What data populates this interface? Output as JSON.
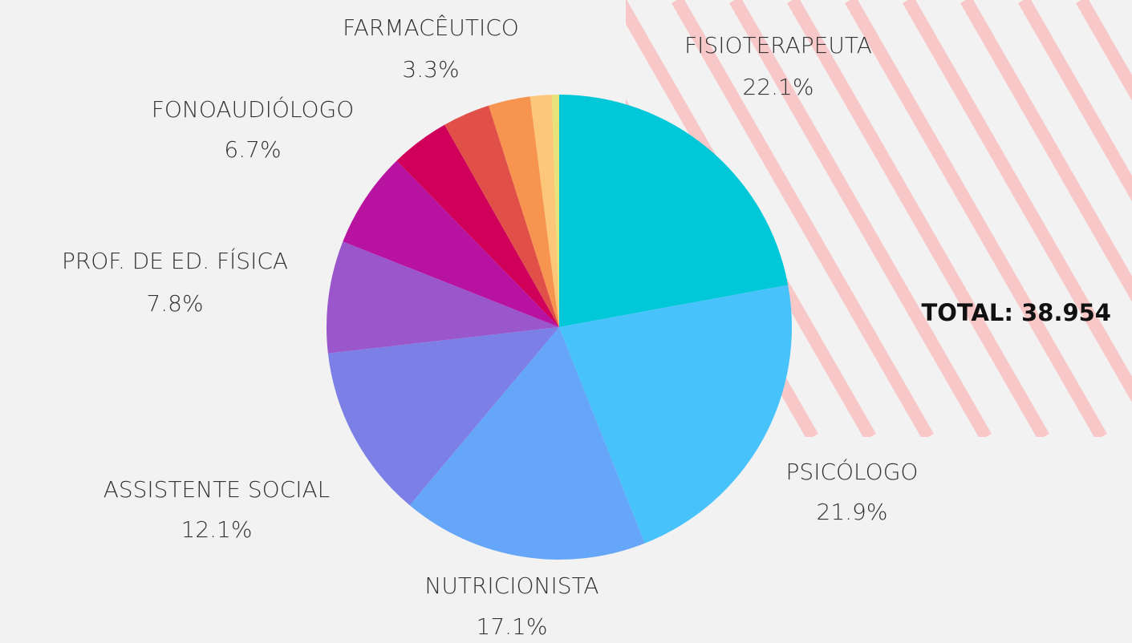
{
  "chart_data": {
    "type": "pie",
    "categories": [
      "FISIOTERAPEUTA",
      "PSICÓLOGO",
      "NUTRICIONISTA",
      "ASSISTENTE SOCIAL",
      "PROF. DE ED. FÍSICA",
      "FONOAUDIÓLOGO",
      null,
      "FARMACÊUTICO",
      null,
      null,
      null
    ],
    "values": [
      22.1,
      21.9,
      17.1,
      12.1,
      7.8,
      6.7,
      4.1,
      3.3,
      2.9,
      1.5,
      0.5
    ],
    "value_labels": [
      "22.1%",
      "21.9%",
      "17.1%",
      "12.1%",
      "7.8%",
      "6.7%",
      null,
      "3.3%",
      null,
      null,
      null
    ],
    "colors": [
      "#00c8d8",
      "#48c2fa",
      "#65a6f8",
      "#7c80e6",
      "#9a57cc",
      "#b812a0",
      "#d0005a",
      "#e05048",
      "#f79450",
      "#fcc778",
      "#e8e27a"
    ],
    "total": "TOTAL: 38.954"
  }
}
